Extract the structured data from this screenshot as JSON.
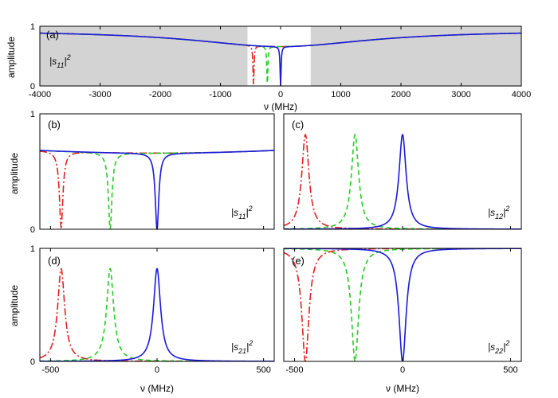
{
  "chart_data": {
    "type": "line",
    "figure_ylabel": "amplitude",
    "series_styles": [
      {
        "name": "blue solid",
        "color": "#1a1adb",
        "dash": "solid"
      },
      {
        "name": "green dashed",
        "color": "#22cc22",
        "dash": "dashed"
      },
      {
        "name": "red dash-dot",
        "color": "#e02020",
        "dash": "dashdot"
      }
    ],
    "resonances_mhz": [
      0,
      -220,
      -450
    ],
    "panels": [
      {
        "id": "a",
        "tag": "(a)",
        "quantity": {
          "base": "|s",
          "sub": "11",
          "sup": "2"
        },
        "xlabel": "ν (MHz)",
        "xlim": [
          -4000,
          4000
        ],
        "ylim": [
          0,
          1
        ],
        "xticks": [
          "-4000",
          "-3000",
          "-2000",
          "-1000",
          "0",
          "1000",
          "2000",
          "3000",
          "4000"
        ],
        "yticks": [
          "0",
          "1"
        ],
        "shaded_regions": [
          [
            -4000,
            -550
          ],
          [
            500,
            4000
          ]
        ],
        "curve": "s11",
        "baseline_level": 0.66,
        "baseline_far": 0.93,
        "dip_depth": 0.66,
        "width_mhz": 10
      },
      {
        "id": "b",
        "tag": "(b)",
        "quantity": {
          "base": "|s",
          "sub": "11",
          "sup": "2"
        },
        "xlabel": "",
        "xlim": [
          -550,
          550
        ],
        "ylim": [
          0,
          1
        ],
        "xticks": [],
        "yticks": [
          "0",
          "1"
        ],
        "curve": "s11",
        "baseline_level": 0.66,
        "baseline_far": 0.93,
        "dip_depth": 0.66,
        "width_mhz": 10
      },
      {
        "id": "c",
        "tag": "(c)",
        "quantity": {
          "base": "|s",
          "sub": "12",
          "sup": "2"
        },
        "xlabel": "",
        "xlim": [
          -550,
          550
        ],
        "ylim": [
          0,
          1
        ],
        "xticks": [],
        "yticks": [],
        "curve": "peak",
        "peak": 0.82,
        "width_mhz": 20
      },
      {
        "id": "d",
        "tag": "(d)",
        "quantity": {
          "base": "|s",
          "sub": "21",
          "sup": "2"
        },
        "xlabel": "ν (MHz)",
        "xlim": [
          -550,
          550
        ],
        "ylim": [
          0,
          1
        ],
        "xticks": [
          "-500",
          "0",
          "500"
        ],
        "yticks": [
          "0",
          "1"
        ],
        "curve": "peak",
        "peak": 0.82,
        "width_mhz": 20
      },
      {
        "id": "e",
        "tag": "(e)",
        "quantity": {
          "base": "|s",
          "sub": "22",
          "sup": "2"
        },
        "xlabel": "ν (MHz)",
        "xlim": [
          -550,
          550
        ],
        "ylim": [
          0,
          1
        ],
        "xticks": [
          "-500",
          "0",
          "500"
        ],
        "yticks": [],
        "curve": "dip",
        "baseline_level": 1.0,
        "dip_depth": 1.0,
        "width_mhz": 20
      }
    ]
  }
}
